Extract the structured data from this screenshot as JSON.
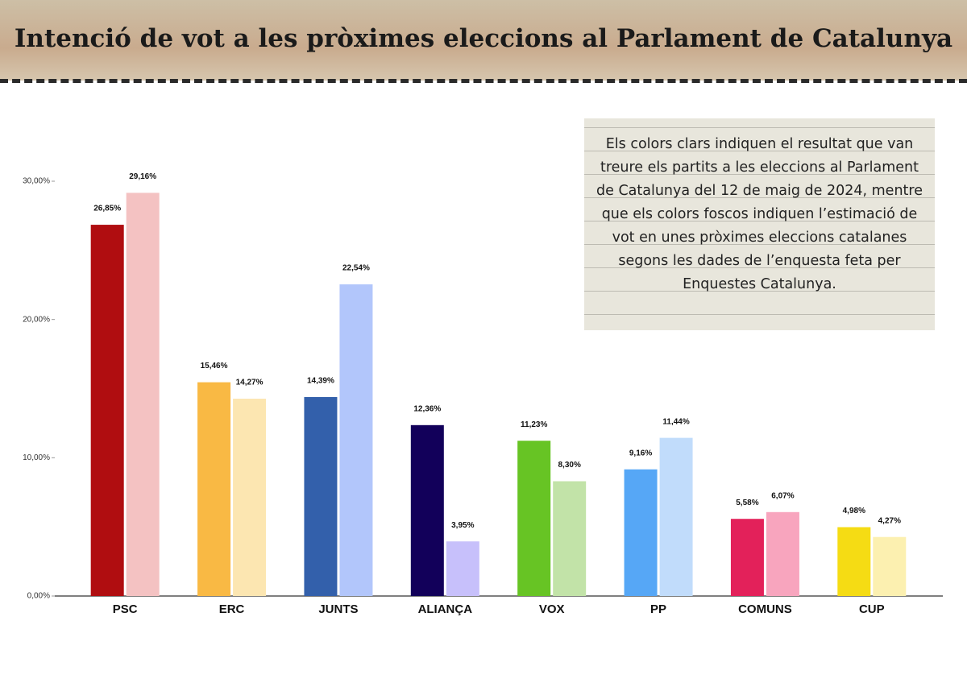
{
  "chart_data": {
    "type": "bar",
    "title": "Intenció de vot a les pròximes eleccions al Parlament de Catalunya",
    "annotation": "Els colors clars indiquen el resultat que van treure els partits a les eleccions al Parlament de Catalunya del 12 de maig de 2024, mentre que els colors foscos indiquen l’estimació de vot en unes pròximes eleccions catalanes segons les dades de l’enquesta feta per Enquestes Catalunya.",
    "categories": [
      "PSC",
      "ERC",
      "JUNTS",
      "ALIANÇA",
      "VOX",
      "PP",
      "COMUNS",
      "CUP"
    ],
    "series": [
      {
        "colors": [
          "#b00d10",
          "#f9b944",
          "#3360ab",
          "#12005a",
          "#67c424",
          "#56a7f6",
          "#e3215a",
          "#f5dc14"
        ],
        "values": [
          26.85,
          15.46,
          14.39,
          12.36,
          11.23,
          9.16,
          5.58,
          4.98
        ],
        "value_labels": [
          "26,85%",
          "15,46%",
          "14,39%",
          "12,36%",
          "11,23%",
          "9,16%",
          "5,58%",
          "4,98%"
        ]
      },
      {
        "colors": [
          "#f4c2c2",
          "#fce6b1",
          "#b2c6fb",
          "#c7c0fb",
          "#c2e3a8",
          "#c1dcfb",
          "#f8a5be",
          "#fcf0b0"
        ],
        "values": [
          29.16,
          14.27,
          22.54,
          3.95,
          8.3,
          11.44,
          6.07,
          4.27
        ],
        "value_labels": [
          "29,16%",
          "14,27%",
          "22,54%",
          "3,95%",
          "8,30%",
          "11,44%",
          "6,07%",
          "4,27%"
        ]
      }
    ],
    "ylim": [
      0,
      30
    ],
    "yticks": [
      {
        "value": 0,
        "label": "0,00%"
      },
      {
        "value": 10,
        "label": "10,00%"
      },
      {
        "value": 20,
        "label": "20,00%"
      },
      {
        "value": 30,
        "label": "30,00%"
      }
    ]
  }
}
